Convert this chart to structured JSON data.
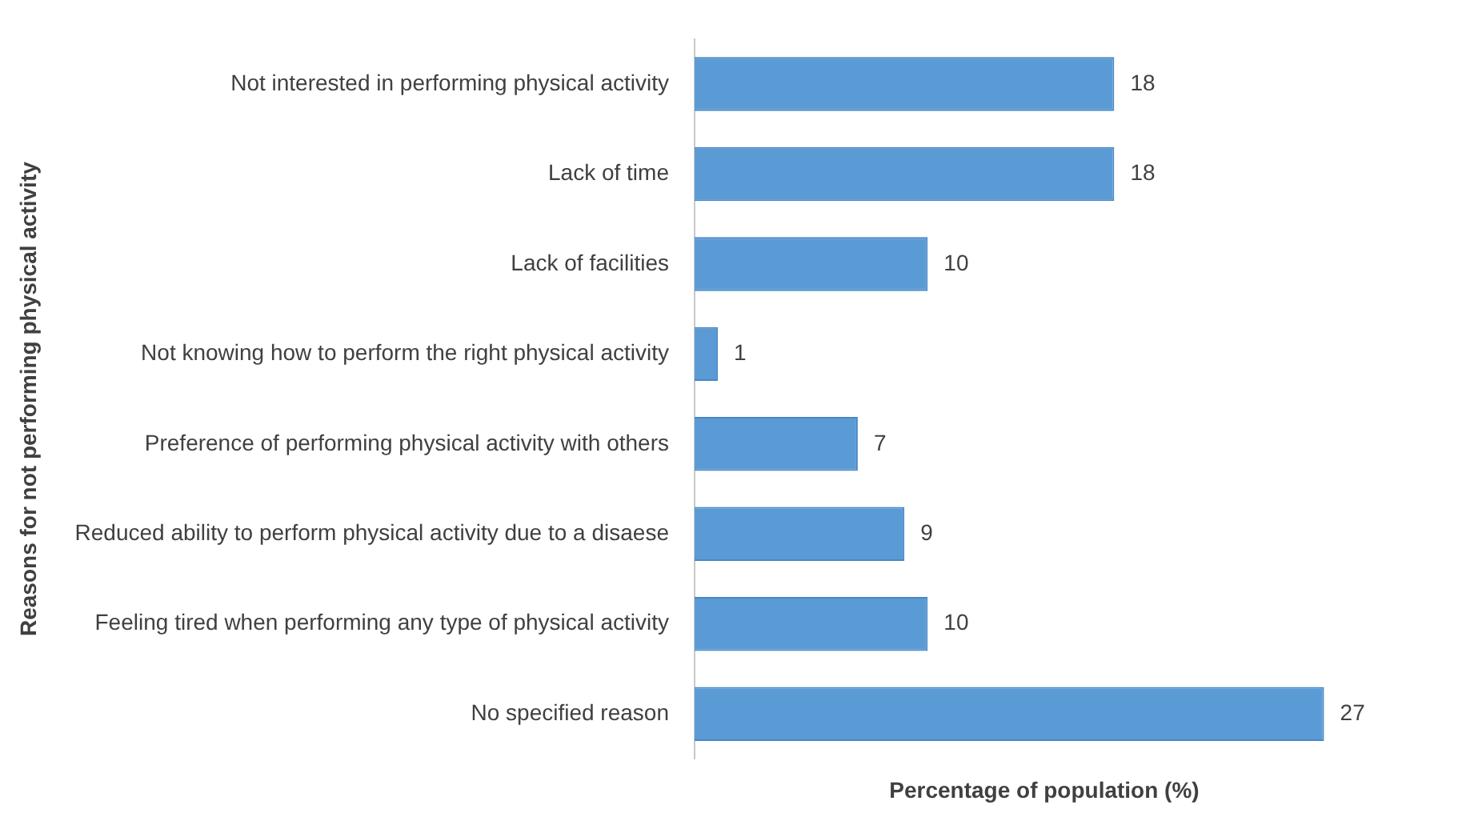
{
  "chart_data": {
    "type": "bar",
    "orientation": "horizontal",
    "xlabel": "Percentage of population (%)",
    "ylabel": "Reasons for not performing physical activity",
    "categories": [
      "Not interested in performing physical activity",
      "Lack of time",
      "Lack of facilities",
      "Not knowing how to perform the right physical activity",
      "Preference of performing physical activity with others",
      "Reduced ability to perform physical activity due to a disaese",
      "Feeling tired when performing any type of physical activity",
      "No specified reason"
    ],
    "values": [
      18,
      18,
      10,
      1,
      7,
      9,
      10,
      27
    ],
    "color": "#5b9bd5",
    "data_labels": true
  }
}
